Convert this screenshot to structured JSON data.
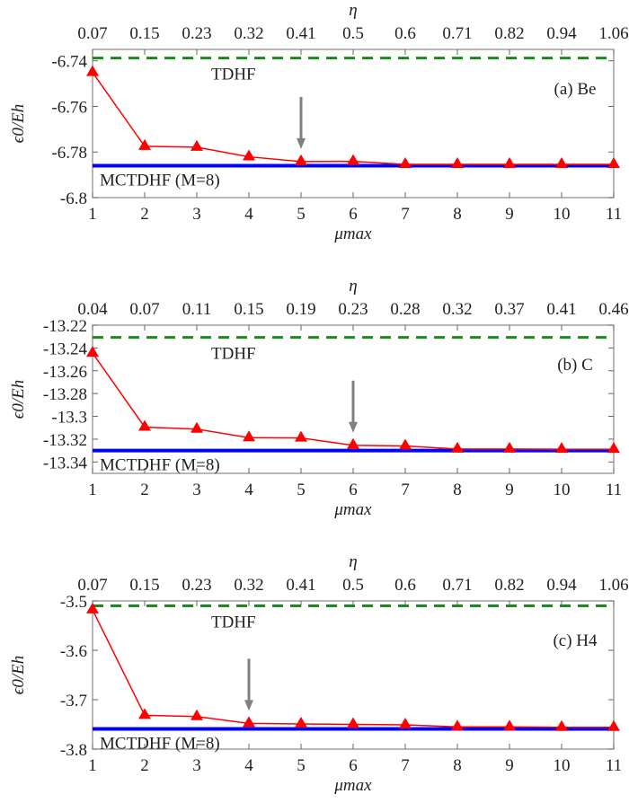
{
  "chart_data": [
    {
      "type": "line",
      "panel_label": "(a) Be",
      "xlabel": "μmax",
      "top_xlabel": "η",
      "ylabel": "ϵ0/Eh",
      "x": [
        1,
        2,
        3,
        4,
        5,
        6,
        7,
        8,
        9,
        10,
        11
      ],
      "x_ticks": [
        "1",
        "2",
        "3",
        "4",
        "5",
        "6",
        "7",
        "8",
        "9",
        "10",
        "11"
      ],
      "top_x_ticks": [
        "0.07",
        "0.15",
        "0.23",
        "0.32",
        "0.41",
        "0.5",
        "0.6",
        "0.71",
        "0.82",
        "0.94",
        "1.06"
      ],
      "ylim": [
        -6.8,
        -6.735
      ],
      "y_ticks": [
        -6.74,
        -6.76,
        -6.78,
        -6.8
      ],
      "y_tick_labels": [
        "-6.74",
        "-6.76",
        "-6.78",
        "-6.8"
      ],
      "series": [
        {
          "values": [
            -6.7451,
            -6.7775,
            -6.7779,
            -6.7821,
            -6.7842,
            -6.7841,
            -6.7854,
            -6.7854,
            -6.7854,
            -6.7854,
            -6.7854
          ],
          "color": "#ff0000",
          "marker": "triangle"
        }
      ],
      "reference_lines": [
        {
          "name": "TDHF",
          "value": -6.7388,
          "color": "#1a8a1a",
          "style": "dashed"
        },
        {
          "name": "MCTDHF (M=8)",
          "value": -6.786,
          "color": "#0000ff",
          "style": "solid"
        }
      ],
      "arrow_at_x": 5
    },
    {
      "type": "line",
      "panel_label": "(b) C",
      "xlabel": "μmax",
      "top_xlabel": "η",
      "ylabel": "ϵ0/Eh",
      "x": [
        1,
        2,
        3,
        4,
        5,
        6,
        7,
        8,
        9,
        10,
        11
      ],
      "x_ticks": [
        "1",
        "2",
        "3",
        "4",
        "5",
        "6",
        "7",
        "8",
        "9",
        "10",
        "11"
      ],
      "top_x_ticks": [
        "0.04",
        "0.07",
        "0.11",
        "0.15",
        "0.19",
        "0.23",
        "0.28",
        "0.32",
        "0.37",
        "0.41",
        "0.46"
      ],
      "ylim": [
        -13.35,
        -13.22
      ],
      "y_ticks": [
        -13.22,
        -13.24,
        -13.26,
        -13.28,
        -13.3,
        -13.32,
        -13.34
      ],
      "y_tick_labels": [
        "-13.22",
        "-13.24",
        "-13.26",
        "-13.28",
        "-13.3",
        "-13.32",
        "-13.34"
      ],
      "series": [
        {
          "values": [
            -13.2445,
            -13.3094,
            -13.3112,
            -13.3187,
            -13.319,
            -13.3254,
            -13.326,
            -13.3286,
            -13.3286,
            -13.3288,
            -13.3288
          ],
          "color": "#ff0000",
          "marker": "triangle"
        }
      ],
      "reference_lines": [
        {
          "name": "TDHF",
          "value": -13.2307,
          "color": "#1a8a1a",
          "style": "dashed"
        },
        {
          "name": "MCTDHF (M=8)",
          "value": -13.33,
          "color": "#0000ff",
          "style": "solid"
        }
      ],
      "arrow_at_x": 6
    },
    {
      "type": "line",
      "panel_label": "(c) H4",
      "xlabel": "μmax",
      "top_xlabel": "η",
      "ylabel": "ϵ0/Eh",
      "x": [
        1,
        2,
        3,
        4,
        5,
        6,
        7,
        8,
        9,
        10,
        11
      ],
      "x_ticks": [
        "1",
        "2",
        "3",
        "4",
        "5",
        "6",
        "7",
        "8",
        "9",
        "10",
        "11"
      ],
      "top_x_ticks": [
        "0.07",
        "0.15",
        "0.23",
        "0.32",
        "0.41",
        "0.5",
        "0.6",
        "0.71",
        "0.82",
        "0.94",
        "1.06"
      ],
      "ylim": [
        -3.8,
        -3.5
      ],
      "y_ticks": [
        -3.5,
        -3.6,
        -3.7,
        -3.8
      ],
      "y_tick_labels": [
        "-3.5",
        "-3.6",
        "-3.7",
        "-3.8"
      ],
      "series": [
        {
          "values": [
            -3.518,
            -3.7316,
            -3.734,
            -3.748,
            -3.749,
            -3.75,
            -3.751,
            -3.755,
            -3.755,
            -3.756,
            -3.756
          ],
          "color": "#ff0000",
          "marker": "triangle"
        }
      ],
      "reference_lines": [
        {
          "name": "TDHF",
          "value": -3.51,
          "color": "#1a8a1a",
          "style": "dashed"
        },
        {
          "name": "MCTDHF (M=8)",
          "value": -3.759,
          "color": "#0000ff",
          "style": "solid"
        }
      ],
      "arrow_at_x": 4
    }
  ]
}
